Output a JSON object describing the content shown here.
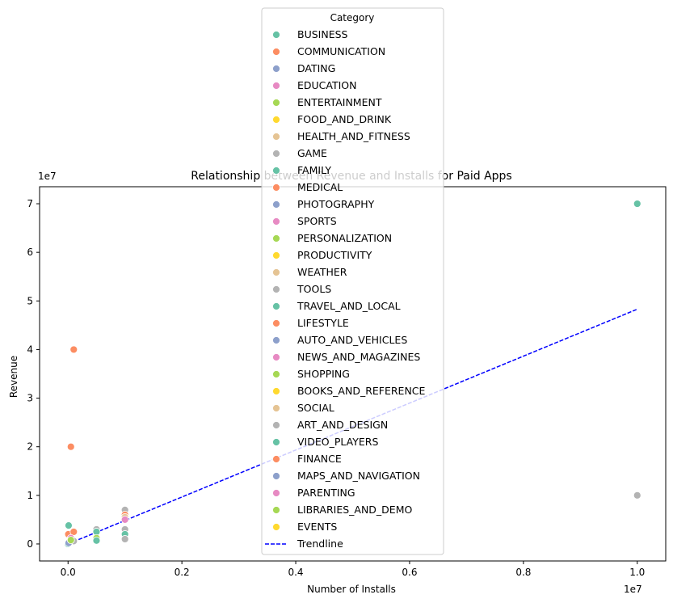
{
  "chart_data": {
    "type": "scatter",
    "title": "Relationship between Revenue and Installs for Paid Apps",
    "xlabel": "Number of Installs",
    "ylabel": "Revenue",
    "x_offset_label": "1e7",
    "y_offset_label": "1e7",
    "xlim": [
      -0.05,
      1.05
    ],
    "ylim": [
      -0.35,
      7.35
    ],
    "x_ticks": [
      0.0,
      0.2,
      0.4,
      0.6,
      0.8,
      1.0
    ],
    "x_tick_labels": [
      "0.0",
      "0.2",
      "0.4",
      "0.6",
      "0.8",
      "1.0"
    ],
    "y_ticks": [
      0,
      1,
      2,
      3,
      4,
      5,
      6,
      7
    ],
    "y_tick_labels": [
      "0",
      "1",
      "2",
      "3",
      "4",
      "5",
      "6",
      "7"
    ],
    "grid": false,
    "legend": {
      "title": "Category",
      "placement": "upper-center",
      "entries": [
        {
          "name": "BUSINESS",
          "color": "#66c2a5"
        },
        {
          "name": "COMMUNICATION",
          "color": "#fc8d62"
        },
        {
          "name": "DATING",
          "color": "#8da0cb"
        },
        {
          "name": "EDUCATION",
          "color": "#e78ac3"
        },
        {
          "name": "ENTERTAINMENT",
          "color": "#a6d854"
        },
        {
          "name": "FOOD_AND_DRINK",
          "color": "#ffd92f"
        },
        {
          "name": "HEALTH_AND_FITNESS",
          "color": "#e5c494"
        },
        {
          "name": "GAME",
          "color": "#b3b3b3"
        },
        {
          "name": "FAMILY",
          "color": "#66c2a5"
        },
        {
          "name": "MEDICAL",
          "color": "#fc8d62"
        },
        {
          "name": "PHOTOGRAPHY",
          "color": "#8da0cb"
        },
        {
          "name": "SPORTS",
          "color": "#e78ac3"
        },
        {
          "name": "PERSONALIZATION",
          "color": "#a6d854"
        },
        {
          "name": "PRODUCTIVITY",
          "color": "#ffd92f"
        },
        {
          "name": "WEATHER",
          "color": "#e5c494"
        },
        {
          "name": "TOOLS",
          "color": "#b3b3b3"
        },
        {
          "name": "TRAVEL_AND_LOCAL",
          "color": "#66c2a5"
        },
        {
          "name": "LIFESTYLE",
          "color": "#fc8d62"
        },
        {
          "name": "AUTO_AND_VEHICLES",
          "color": "#8da0cb"
        },
        {
          "name": "NEWS_AND_MAGAZINES",
          "color": "#e78ac3"
        },
        {
          "name": "SHOPPING",
          "color": "#a6d854"
        },
        {
          "name": "BOOKS_AND_REFERENCE",
          "color": "#ffd92f"
        },
        {
          "name": "SOCIAL",
          "color": "#e5c494"
        },
        {
          "name": "ART_AND_DESIGN",
          "color": "#b3b3b3"
        },
        {
          "name": "VIDEO_PLAYERS",
          "color": "#66c2a5"
        },
        {
          "name": "FINANCE",
          "color": "#fc8d62"
        },
        {
          "name": "MAPS_AND_NAVIGATION",
          "color": "#8da0cb"
        },
        {
          "name": "PARENTING",
          "color": "#e78ac3"
        },
        {
          "name": "LIBRARIES_AND_DEMO",
          "color": "#a6d854"
        },
        {
          "name": "EVENTS",
          "color": "#ffd92f"
        }
      ],
      "trendline_label": "Trendline"
    },
    "trendline": {
      "color": "#0000ff",
      "style": "dashed",
      "x": [
        0.0,
        1.0
      ],
      "y": [
        0.0,
        4.83
      ]
    },
    "points": [
      {
        "x": 1.0,
        "y": 7.0,
        "color": "#66c2a5"
      },
      {
        "x": 1.0,
        "y": 1.0,
        "color": "#b3b3b3"
      },
      {
        "x": 0.01,
        "y": 4.0,
        "color": "#fc8d62"
      },
      {
        "x": 0.005,
        "y": 2.0,
        "color": "#fc8d62"
      },
      {
        "x": 0.001,
        "y": 0.38,
        "color": "#66c2a5"
      },
      {
        "x": 0.0005,
        "y": 0.2,
        "color": "#fc8d62"
      },
      {
        "x": 0.01,
        "y": 0.25,
        "color": "#fc8d62"
      },
      {
        "x": 0.005,
        "y": 0.12,
        "color": "#e78ac3"
      },
      {
        "x": 0.01,
        "y": 0.06,
        "color": "#b3b3b3"
      },
      {
        "x": 0.0,
        "y": 0.0,
        "color": "#66c2a5"
      },
      {
        "x": 0.001,
        "y": 0.02,
        "color": "#8da0cb"
      },
      {
        "x": 0.005,
        "y": 0.08,
        "color": "#a6d854"
      },
      {
        "x": 0.05,
        "y": 0.3,
        "color": "#b3b3b3"
      },
      {
        "x": 0.05,
        "y": 0.25,
        "color": "#66c2a5"
      },
      {
        "x": 0.05,
        "y": 0.12,
        "color": "#a6d854"
      },
      {
        "x": 0.05,
        "y": 0.07,
        "color": "#66c2a5"
      },
      {
        "x": 0.1,
        "y": 0.7,
        "color": "#b3b3b3"
      },
      {
        "x": 0.1,
        "y": 0.6,
        "color": "#fc8d62"
      },
      {
        "x": 0.1,
        "y": 0.55,
        "color": "#e5c494"
      },
      {
        "x": 0.1,
        "y": 0.5,
        "color": "#e78ac3"
      },
      {
        "x": 0.1,
        "y": 0.3,
        "color": "#b3b3b3"
      },
      {
        "x": 0.1,
        "y": 0.2,
        "color": "#66c2a5"
      },
      {
        "x": 0.1,
        "y": 0.1,
        "color": "#b3b3b3"
      }
    ]
  }
}
